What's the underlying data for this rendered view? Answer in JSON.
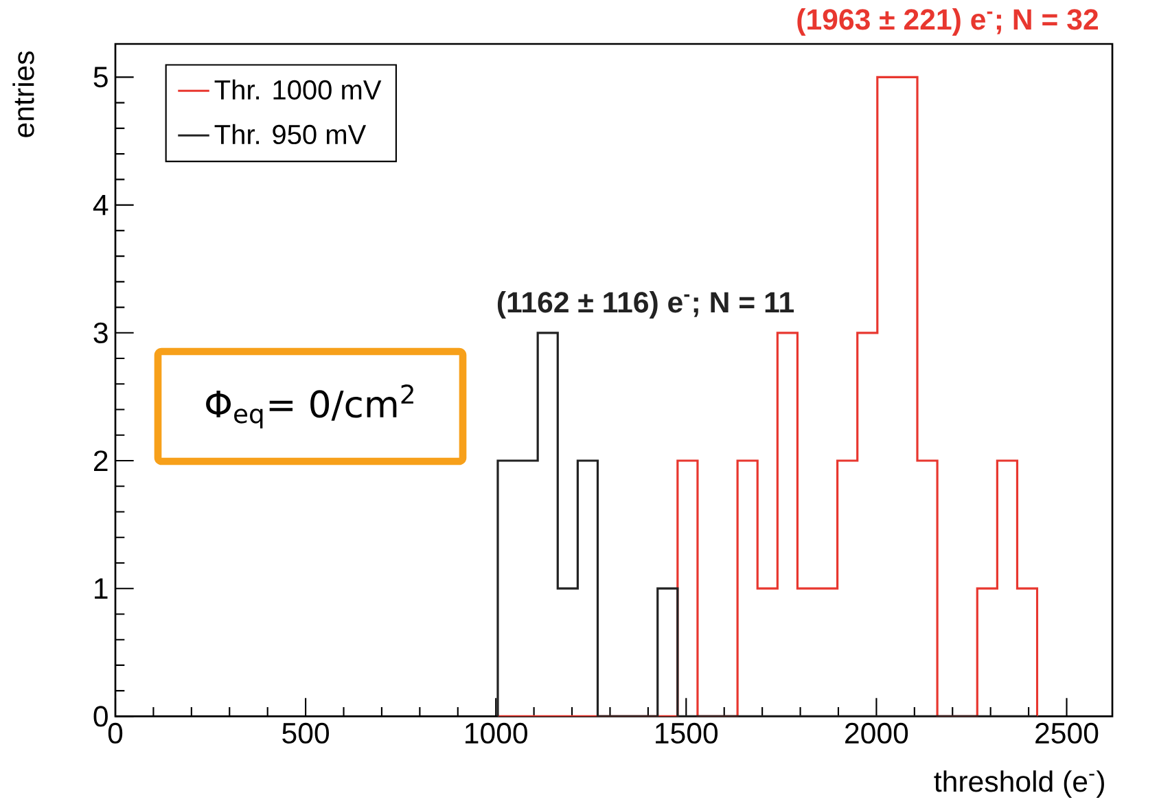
{
  "chart_data": {
    "type": "histogram",
    "xlabel": "threshold (e$^{-}$)",
    "ylabel": "entries",
    "bins": [
      1005,
      1057.5,
      1110,
      1162.5,
      1215,
      1267.5,
      1320,
      1372.5,
      1425,
      1477.5,
      1530,
      1582.5,
      1635,
      1687.5,
      1740,
      1792.5,
      1845,
      1897.5,
      1950,
      2002.5,
      2055,
      2107.5,
      2160,
      2212.5,
      2265,
      2317.5,
      2370,
      2422.5
    ],
    "series": [
      {
        "name": "Thr. 1000 mV",
        "color": "#e8372f",
        "values": [
          0,
          0,
          0,
          0,
          0,
          0,
          0,
          0,
          0,
          2,
          0,
          0,
          2,
          1,
          3,
          1,
          1,
          2,
          3,
          5,
          5,
          2,
          0,
          0,
          1,
          2,
          1
        ]
      },
      {
        "name": "Thr. 950 mV",
        "color": "#222222",
        "values": [
          2,
          2,
          3,
          1,
          2,
          0,
          0,
          0,
          1,
          0,
          0,
          0,
          0,
          0,
          0,
          0,
          0,
          0,
          0,
          0,
          0,
          0,
          0,
          0,
          0,
          0,
          0
        ]
      }
    ],
    "annotations": [
      "(1963 ± 221) e$^{-}$; N = 32",
      "(1162 ± 116) e$^{-}$; N = 11",
      "Φ$_{eq}$= 0/cm$^{2}$"
    ],
    "xlim": [
      0,
      2620
    ],
    "ylim": [
      0,
      5.26
    ],
    "xticks": [
      0,
      500,
      1000,
      1500,
      2000,
      2500
    ],
    "yticks": [
      0,
      1,
      2,
      3,
      4,
      5
    ],
    "legend": "top left",
    "grid": false
  }
}
